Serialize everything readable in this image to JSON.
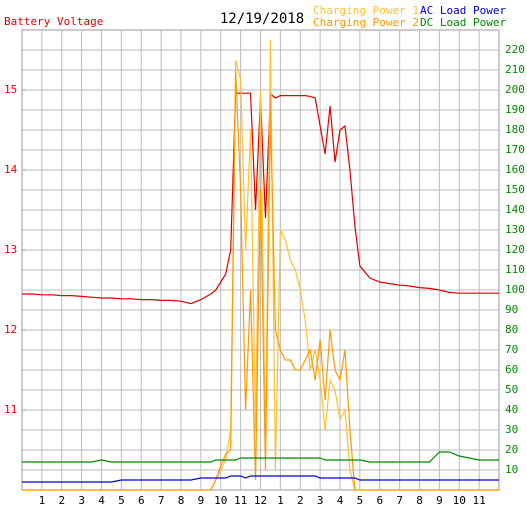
{
  "chart_data": {
    "type": "line",
    "title": "12/19/2018",
    "ylabel": "Battery Voltage",
    "x": [
      0,
      0.5,
      1,
      1.5,
      2,
      2.5,
      3,
      3.5,
      4,
      4.5,
      5,
      5.5,
      6,
      6.5,
      7,
      7.5,
      8,
      8.5,
      9,
      9.5,
      9.75,
      10,
      10.25,
      10.5,
      10.75,
      11,
      11.25,
      11.5,
      11.75,
      12,
      12.25,
      12.5,
      12.75,
      13,
      13.25,
      13.5,
      13.75,
      14,
      14.25,
      14.5,
      14.75,
      15,
      15.25,
      15.5,
      15.75,
      16,
      16.25,
      16.5,
      16.75,
      17,
      17.5,
      18,
      18.5,
      19,
      19.5,
      20,
      20.5,
      21,
      21.5,
      22,
      22.5,
      23,
      23.5,
      24
    ],
    "xlim": [
      0,
      24
    ],
    "xticks": [
      1,
      2,
      3,
      4,
      5,
      6,
      7,
      8,
      9,
      10,
      11,
      12,
      {
        "value": 13,
        "label": "1"
      },
      {
        "value": 14,
        "label": "2"
      },
      {
        "value": 15,
        "label": "3"
      },
      {
        "value": 16,
        "label": "4"
      },
      {
        "value": 17,
        "label": "5"
      },
      {
        "value": 18,
        "label": "6"
      },
      {
        "value": 19,
        "label": "7"
      },
      {
        "value": 20,
        "label": "8"
      },
      {
        "value": 21,
        "label": "9"
      },
      {
        "value": 22,
        "label": "10"
      },
      {
        "value": 23,
        "label": "11"
      }
    ],
    "ylim": [
      10,
      15.75
    ],
    "yticks": [
      11,
      12,
      13,
      14,
      15
    ],
    "ytick_color": "#dd0000",
    "y2lim": [
      0,
      230
    ],
    "y2ticks": [
      10,
      20,
      30,
      40,
      50,
      60,
      70,
      80,
      90,
      100,
      110,
      120,
      130,
      140,
      150,
      160,
      170,
      180,
      190,
      200,
      210,
      220
    ],
    "y2tick_color": "#008800",
    "grid": true,
    "series": [
      {
        "name": "Battery Voltage",
        "color": "#dd0000",
        "axis": "y",
        "values": [
          12.45,
          12.45,
          12.44,
          12.44,
          12.43,
          12.43,
          12.42,
          12.41,
          12.4,
          12.4,
          12.39,
          12.39,
          12.38,
          12.38,
          12.37,
          12.37,
          12.36,
          12.33,
          12.38,
          12.45,
          12.5,
          12.6,
          12.7,
          13.0,
          14.96,
          14.96,
          14.96,
          14.96,
          13.5,
          14.9,
          13.4,
          14.95,
          14.9,
          14.93,
          14.93,
          14.93,
          14.93,
          14.93,
          14.93,
          14.92,
          14.9,
          14.55,
          14.2,
          14.8,
          14.1,
          14.5,
          14.55,
          14.0,
          13.3,
          12.8,
          12.65,
          12.6,
          12.58,
          12.56,
          12.55,
          12.53,
          12.52,
          12.5,
          12.47,
          12.46,
          12.46,
          12.46,
          12.46,
          12.46
        ]
      },
      {
        "name": "Charging Power 1",
        "color": "#ffc030",
        "axis": "y2",
        "values": [
          0,
          0,
          0,
          0,
          0,
          0,
          0,
          0,
          0,
          0,
          0,
          0,
          0,
          0,
          0,
          0,
          0,
          0,
          0,
          0,
          5,
          10,
          15,
          30,
          215,
          205,
          120,
          180,
          30,
          200,
          20,
          225,
          10,
          130,
          125,
          115,
          110,
          100,
          85,
          60,
          70,
          55,
          30,
          55,
          50,
          35,
          40,
          10,
          0,
          0,
          0,
          0,
          0,
          0,
          0,
          0,
          0,
          0,
          0,
          0,
          0,
          0,
          0,
          0
        ]
      },
      {
        "name": "Charging Power 2",
        "color": "#ff9900",
        "axis": "y2",
        "values": [
          0,
          0,
          0,
          0,
          0,
          0,
          0,
          0,
          0,
          0,
          0,
          0,
          0,
          0,
          0,
          0,
          0,
          0,
          0,
          0,
          5,
          12,
          18,
          20,
          210,
          150,
          40,
          100,
          5,
          150,
          10,
          190,
          80,
          70,
          65,
          65,
          60,
          60,
          65,
          70,
          55,
          75,
          45,
          80,
          60,
          55,
          70,
          30,
          0,
          0,
          0,
          0,
          0,
          0,
          0,
          0,
          0,
          0,
          0,
          0,
          0,
          0,
          0,
          0
        ]
      },
      {
        "name": "AC Load Power",
        "color": "#0000cc",
        "axis": "y2",
        "values": [
          4,
          4,
          4,
          4,
          4,
          4,
          4,
          4,
          4,
          4,
          5,
          5,
          5,
          5,
          5,
          5,
          5,
          5,
          6,
          6,
          6,
          6,
          6,
          7,
          7,
          7,
          6,
          7,
          7,
          7,
          7,
          7,
          7,
          7,
          7,
          7,
          7,
          7,
          7,
          7,
          7,
          6,
          6,
          6,
          6,
          6,
          6,
          6,
          6,
          5,
          5,
          5,
          5,
          5,
          5,
          5,
          5,
          5,
          5,
          5,
          5,
          5,
          5,
          5
        ]
      },
      {
        "name": "DC Load Power",
        "color": "#008800",
        "axis": "y2",
        "values": [
          14,
          14,
          14,
          14,
          14,
          14,
          14,
          14,
          15,
          14,
          14,
          14,
          14,
          14,
          14,
          14,
          14,
          14,
          14,
          14,
          15,
          15,
          15,
          15,
          15,
          16,
          16,
          16,
          16,
          16,
          16,
          16,
          16,
          16,
          16,
          16,
          16,
          16,
          16,
          16,
          16,
          16,
          15,
          15,
          15,
          15,
          15,
          15,
          15,
          15,
          14,
          14,
          14,
          14,
          14,
          14,
          14,
          19,
          19,
          17,
          16,
          15,
          15,
          15
        ]
      }
    ]
  }
}
